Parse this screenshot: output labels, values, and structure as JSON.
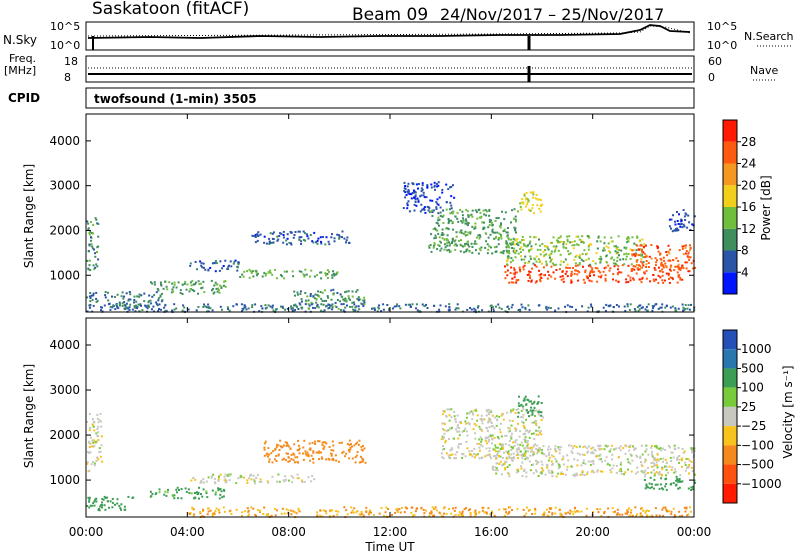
{
  "header": {
    "station": "Saskatoon (fitACF)",
    "beam": "Beam 09",
    "dates": "24/Nov/2017 – 25/Nov/2017"
  },
  "nsky_panel": {
    "left_label": "N.Sky",
    "left_ticks": [
      "10^5",
      "10^0"
    ],
    "right_label": "N.Search",
    "right_ticks": [
      "10^5",
      "10^0"
    ]
  },
  "freq_panel": {
    "left_label_1": "Freq.",
    "left_label_2": "[MHz]",
    "left_ticks": [
      "18",
      "8"
    ],
    "right_label": "Nave",
    "right_ticks": [
      "60",
      "0"
    ]
  },
  "cpid": {
    "label": "CPID",
    "text": "twofsound (1-min) 3505"
  },
  "time_axis": {
    "ticks": [
      "00:00",
      "04:00",
      "08:00",
      "12:00",
      "16:00",
      "20:00",
      "00:00"
    ],
    "title": "Time UT"
  },
  "range_axis": {
    "ticks": [
      "1000",
      "2000",
      "3000",
      "4000"
    ],
    "title": "Slant Range [km]"
  },
  "power_colorbar": {
    "title": "Power [dB]",
    "ticks": [
      "4",
      "8",
      "12",
      "16",
      "20",
      "24",
      "28"
    ],
    "colors": [
      "#0015ff",
      "#2a54a8",
      "#3e8e5e",
      "#70bf3c",
      "#f2cf1b",
      "#f5981f",
      "#ff5a10",
      "#ff1a00"
    ]
  },
  "velocity_colorbar": {
    "title": "Velocity [m s⁻¹]",
    "ticks": [
      "1000",
      "500",
      "100",
      "25",
      "−25",
      "−100",
      "−500",
      "−1000"
    ],
    "colors": [
      "#2550b8",
      "#2a77b0",
      "#3c9e55",
      "#78cc3c",
      "#c8c8c0",
      "#f7c31c",
      "#f58a1c",
      "#ff5010",
      "#ff1a00"
    ]
  },
  "chart_data": [
    {
      "type": "heatmap",
      "title": "Power [dB]",
      "xlabel": "Time UT",
      "ylabel": "Slant Range [km]",
      "x_range_hours": [
        0,
        24
      ],
      "ylim": [
        180,
        4600
      ],
      "clim": [
        0,
        32
      ],
      "blobs": [
        {
          "t": [
            0.0,
            0.45
          ],
          "r": [
            1100,
            2300
          ],
          "v": 10
        },
        {
          "t": [
            0.0,
            3.0
          ],
          "r": [
            300,
            650
          ],
          "v": 8
        },
        {
          "t": [
            2.5,
            5.5
          ],
          "r": [
            600,
            900
          ],
          "v": 11
        },
        {
          "t": [
            4.0,
            6.0
          ],
          "r": [
            1100,
            1350
          ],
          "v": 6
        },
        {
          "t": [
            6.0,
            10.0
          ],
          "r": [
            950,
            1150
          ],
          "v": 12
        },
        {
          "t": [
            6.5,
            10.5
          ],
          "r": [
            1700,
            2000
          ],
          "v": 6
        },
        {
          "t": [
            0.0,
            24.0
          ],
          "r": [
            200,
            380
          ],
          "v": 7
        },
        {
          "t": [
            8.0,
            11.0
          ],
          "r": [
            250,
            700
          ],
          "v": 10
        },
        {
          "t": [
            12.5,
            14.5
          ],
          "r": [
            2400,
            3100
          ],
          "v": 5
        },
        {
          "t": [
            13.5,
            17.0
          ],
          "r": [
            1500,
            2500
          ],
          "v": 11
        },
        {
          "t": [
            16.5,
            23.5
          ],
          "r": [
            850,
            1250
          ],
          "v": 27
        },
        {
          "t": [
            16.5,
            22.0
          ],
          "r": [
            1250,
            1900
          ],
          "v": 14
        },
        {
          "t": [
            17.0,
            18.0
          ],
          "r": [
            2400,
            2900
          ],
          "v": 17
        },
        {
          "t": [
            21.5,
            24.0
          ],
          "r": [
            1100,
            1700
          ],
          "v": 26
        },
        {
          "t": [
            23.0,
            24.0
          ],
          "r": [
            2000,
            2500
          ],
          "v": 5
        }
      ]
    },
    {
      "type": "heatmap",
      "title": "Velocity [m s⁻¹]",
      "xlabel": "Time UT",
      "ylabel": "Slant Range [km]",
      "x_range_hours": [
        0,
        24
      ],
      "ylim": [
        180,
        4600
      ],
      "clim": [
        -1000,
        1000
      ],
      "blobs": [
        {
          "t": [
            0.0,
            0.6
          ],
          "r": [
            1200,
            2500
          ],
          "v": 0
        },
        {
          "t": [
            0.0,
            2.0
          ],
          "r": [
            350,
            650
          ],
          "v": 150
        },
        {
          "t": [
            2.5,
            5.5
          ],
          "r": [
            600,
            850
          ],
          "v": 120
        },
        {
          "t": [
            4.0,
            9.0
          ],
          "r": [
            950,
            1150
          ],
          "v": 0
        },
        {
          "t": [
            7.0,
            11.0
          ],
          "r": [
            1400,
            1900
          ],
          "v": -400
        },
        {
          "t": [
            4.0,
            24.0
          ],
          "r": [
            200,
            420
          ],
          "v": -100
        },
        {
          "t": [
            14.0,
            18.0
          ],
          "r": [
            1500,
            2600
          ],
          "v": 0
        },
        {
          "t": [
            16.0,
            24.0
          ],
          "r": [
            1100,
            1800
          ],
          "v": 0
        },
        {
          "t": [
            17.0,
            18.0
          ],
          "r": [
            2400,
            2900
          ],
          "v": 200
        },
        {
          "t": [
            22.0,
            24.0
          ],
          "r": [
            800,
            1100
          ],
          "v": 150
        }
      ]
    }
  ]
}
